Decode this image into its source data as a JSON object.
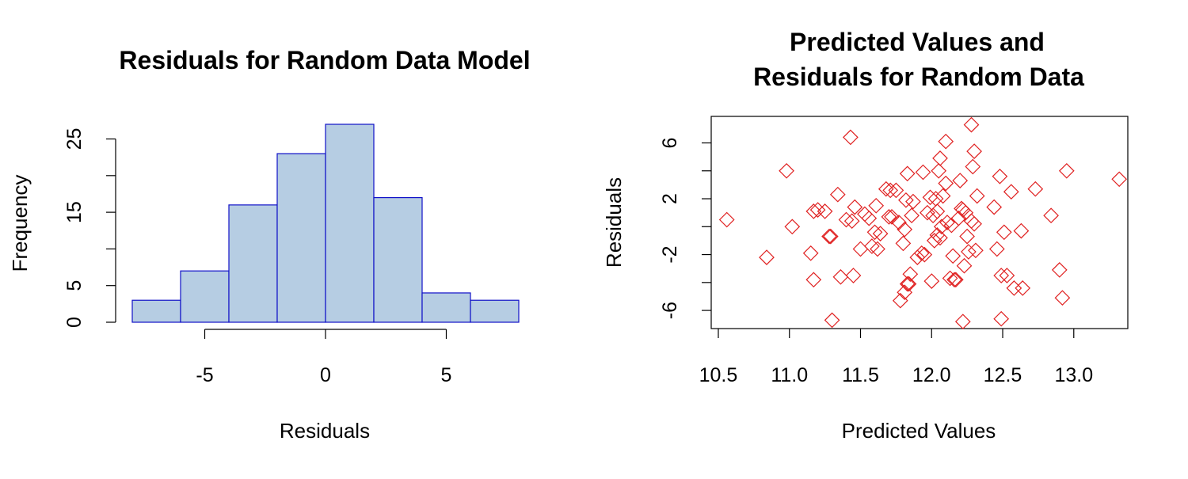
{
  "chart_data": [
    {
      "type": "bar",
      "title": "Residuals for Random Data Model",
      "xlabel": "Residuals",
      "ylabel": "Frequency",
      "bins": [
        {
          "from": -8,
          "to": -6,
          "count": 3
        },
        {
          "from": -6,
          "to": -4,
          "count": 7
        },
        {
          "from": -4,
          "to": -2,
          "count": 16
        },
        {
          "from": -2,
          "to": 0,
          "count": 23
        },
        {
          "from": 0,
          "to": 2,
          "count": 27
        },
        {
          "from": 2,
          "to": 4,
          "count": 17
        },
        {
          "from": 4,
          "to": 6,
          "count": 4
        },
        {
          "from": 6,
          "to": 8,
          "count": 3
        }
      ],
      "xticks": [
        -5,
        0,
        5
      ],
      "yticks": [
        0,
        5,
        15,
        25
      ],
      "yticks_unlabeled": [
        10,
        20
      ],
      "xlim": [
        -8,
        8
      ],
      "ylim": [
        0,
        27
      ],
      "bar_fill": "#b6cde3",
      "bar_border": "#1010c8"
    },
    {
      "type": "scatter",
      "title_lines": [
        "Predicted Values and",
        "Residuals for Random Data"
      ],
      "xlabel": "Predicted Values",
      "ylabel": "Residuals",
      "xticks": [
        "10.5",
        "11.0",
        "11.5",
        "12.0",
        "12.5",
        "13.0"
      ],
      "yticks": [
        "-6",
        "-2",
        "2",
        "6"
      ],
      "yticks_unlabeled": [
        -4,
        0,
        4
      ],
      "xlim": [
        10.45,
        13.38
      ],
      "ylim": [
        -7.3,
        7.9
      ],
      "marker": "diamond",
      "marker_color": "#e02020",
      "points": [
        [
          10.56,
          0.5
        ],
        [
          10.84,
          -2.2
        ],
        [
          10.98,
          4.0
        ],
        [
          11.02,
          0.0
        ],
        [
          11.15,
          -1.9
        ],
        [
          11.17,
          -3.8
        ],
        [
          11.17,
          1.1
        ],
        [
          11.2,
          1.2
        ],
        [
          11.25,
          1.1
        ],
        [
          11.28,
          -0.7
        ],
        [
          11.29,
          -0.7
        ],
        [
          11.3,
          -6.7
        ],
        [
          11.34,
          2.3
        ],
        [
          11.36,
          -3.6
        ],
        [
          11.4,
          0.5
        ],
        [
          11.43,
          6.4
        ],
        [
          11.44,
          0.4
        ],
        [
          11.45,
          -3.5
        ],
        [
          11.46,
          1.4
        ],
        [
          11.5,
          -1.6
        ],
        [
          11.53,
          0.9
        ],
        [
          11.56,
          0.6
        ],
        [
          11.58,
          -1.4
        ],
        [
          11.6,
          -0.4
        ],
        [
          11.61,
          1.5
        ],
        [
          11.62,
          -1.6
        ],
        [
          11.64,
          -0.5
        ],
        [
          11.68,
          2.7
        ],
        [
          11.7,
          0.7
        ],
        [
          11.71,
          2.6
        ],
        [
          11.72,
          0.7
        ],
        [
          11.75,
          2.6
        ],
        [
          11.77,
          0.3
        ],
        [
          11.78,
          -5.3
        ],
        [
          11.8,
          -1.2
        ],
        [
          11.81,
          -0.2
        ],
        [
          11.81,
          -4.7
        ],
        [
          11.82,
          1.9
        ],
        [
          11.83,
          -4.1
        ],
        [
          11.84,
          -4.1
        ],
        [
          11.83,
          3.8
        ],
        [
          11.85,
          -3.4
        ],
        [
          11.86,
          0.8
        ],
        [
          11.87,
          1.8
        ],
        [
          11.9,
          -2.2
        ],
        [
          11.93,
          -1.9
        ],
        [
          11.94,
          3.9
        ],
        [
          11.95,
          -2.0
        ],
        [
          11.97,
          1.0
        ],
        [
          11.99,
          2.1
        ],
        [
          12.0,
          -3.9
        ],
        [
          12.01,
          0.8
        ],
        [
          12.02,
          -1.0
        ],
        [
          12.03,
          2.0
        ],
        [
          12.04,
          -0.6
        ],
        [
          12.04,
          1.1
        ],
        [
          12.05,
          4.0
        ],
        [
          12.06,
          -0.8
        ],
        [
          12.06,
          4.9
        ],
        [
          12.07,
          0.0
        ],
        [
          12.08,
          2.2
        ],
        [
          12.1,
          3.1
        ],
        [
          12.1,
          6.1
        ],
        [
          12.11,
          0.3
        ],
        [
          12.13,
          -3.7
        ],
        [
          12.14,
          0.1
        ],
        [
          12.15,
          -2.1
        ],
        [
          12.16,
          -3.8
        ],
        [
          12.17,
          -3.8
        ],
        [
          12.19,
          0.6
        ],
        [
          12.2,
          3.3
        ],
        [
          12.21,
          1.3
        ],
        [
          12.22,
          1.2
        ],
        [
          12.22,
          -6.8
        ],
        [
          12.23,
          -2.8
        ],
        [
          12.24,
          1.0
        ],
        [
          12.25,
          -0.7
        ],
        [
          12.26,
          -1.8
        ],
        [
          12.28,
          0.4
        ],
        [
          12.28,
          7.3
        ],
        [
          12.29,
          4.3
        ],
        [
          12.3,
          0.2
        ],
        [
          12.3,
          5.4
        ],
        [
          12.31,
          -1.7
        ],
        [
          12.32,
          2.2
        ],
        [
          12.44,
          1.4
        ],
        [
          12.46,
          -1.6
        ],
        [
          12.48,
          3.6
        ],
        [
          12.49,
          -6.6
        ],
        [
          12.49,
          -3.5
        ],
        [
          12.51,
          -0.4
        ],
        [
          12.53,
          -3.5
        ],
        [
          12.56,
          2.5
        ],
        [
          12.58,
          -4.4
        ],
        [
          12.63,
          -0.3
        ],
        [
          12.64,
          -4.4
        ],
        [
          12.73,
          2.7
        ],
        [
          12.84,
          0.8
        ],
        [
          12.9,
          -3.1
        ],
        [
          12.92,
          -5.1
        ],
        [
          12.95,
          4.0
        ],
        [
          13.32,
          3.4
        ]
      ]
    }
  ]
}
